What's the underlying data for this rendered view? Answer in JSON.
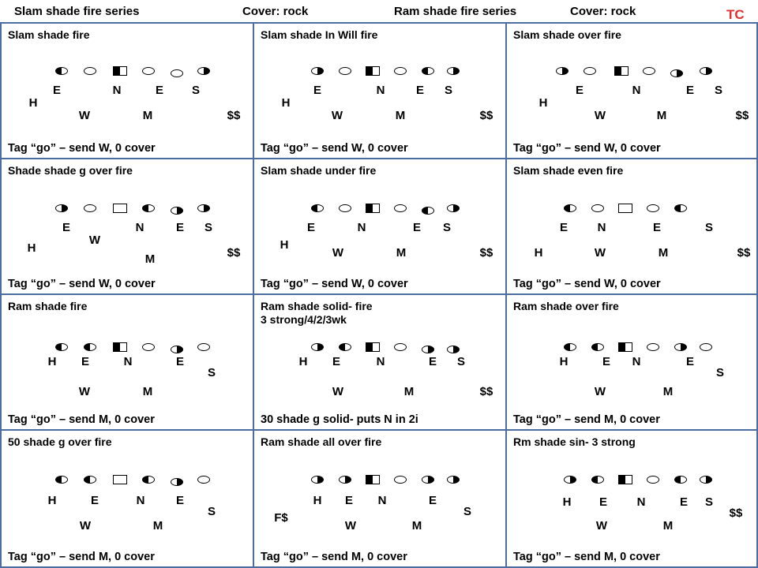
{
  "header": {
    "left_series": "Slam shade fire series",
    "left_cover": "Cover: rock",
    "right_series": "Ram shade fire series",
    "right_cover": "Cover: rock",
    "tag": "TC"
  },
  "cells": [
    {
      "title": "Slam shade fire",
      "footer": "Tag “go” – send W, 0 cover",
      "symbols": [
        "half-left",
        "oval",
        "square-half",
        "oval",
        "oval",
        "half-right"
      ],
      "labels": [
        "E",
        "N",
        "E",
        "S",
        "H",
        "W",
        "M",
        "$$"
      ]
    },
    {
      "title": "Slam shade In Will fire",
      "footer": "Tag “go” – send W, 0 cover",
      "symbols": [
        "half-right",
        "oval",
        "square-half",
        "oval",
        "half-left",
        "half-right"
      ],
      "labels": [
        "E",
        "N",
        "E",
        "S",
        "H",
        "W",
        "M",
        "$$"
      ]
    },
    {
      "title": "Slam shade over fire",
      "footer": "Tag “go” – send W, 0 cover",
      "symbols": [
        "half-right",
        "oval",
        "square-half",
        "oval",
        "half-right",
        "half-right"
      ],
      "labels": [
        "E",
        "N",
        "E",
        "S",
        "H",
        "W",
        "M",
        "$$"
      ]
    },
    {
      "title": "Shade shade  g over fire",
      "footer": "Tag “go” – send W, 0 cover",
      "symbols": [
        "half-right",
        "oval",
        "square",
        "half-left",
        "half-right",
        "half-right"
      ],
      "labels": [
        "E",
        "N",
        "E",
        "S",
        "H",
        "W",
        "M",
        "$$"
      ]
    },
    {
      "title": "Slam shade  under fire",
      "footer": "Tag “go” – send W, 0 cover",
      "symbols": [
        "half-left",
        "oval",
        "square-half",
        "oval",
        "half-left",
        "half-right"
      ],
      "labels": [
        "E",
        "N",
        "E",
        "S",
        "H",
        "W",
        "M",
        "$$"
      ]
    },
    {
      "title": "Slam shade  even fire",
      "footer": "Tag “go” – send W, 0 cover",
      "symbols": [
        "half-left",
        "oval",
        "square",
        "oval",
        "half-left"
      ],
      "labels": [
        "E",
        "N",
        "E",
        "S",
        "H",
        "W",
        "M",
        "$$"
      ]
    },
    {
      "title": "Ram shade fire",
      "footer": "Tag “go” – send M, 0 cover",
      "symbols": [
        "half-left",
        "half-left",
        "square-half",
        "oval",
        "half-right",
        "oval"
      ],
      "labels": [
        "H",
        "E",
        "N",
        "E",
        "S",
        "W",
        "M"
      ]
    },
    {
      "title": "Ram shade solid- fire",
      "subtitle": "3 strong/4/2/3wk",
      "footer": "30 shade g solid- puts N in 2i",
      "symbols": [
        "half-right",
        "half-left",
        "square-half",
        "oval",
        "half-right",
        "half-right"
      ],
      "labels": [
        "H",
        "E",
        "N",
        "E",
        "S",
        "W",
        "M",
        "$$"
      ]
    },
    {
      "title": "Ram shade over fire",
      "footer": "Tag “go” – send M, 0 cover",
      "symbols": [
        "half-left",
        "half-left",
        "square-half",
        "oval",
        "half-right",
        "oval"
      ],
      "labels": [
        "H",
        "E",
        "N",
        "E",
        "S",
        "W",
        "M"
      ]
    },
    {
      "title": "50 shade g over fire",
      "footer": "Tag “go” – send M, 0 cover",
      "symbols": [
        "half-left",
        "half-left",
        "square",
        "half-left",
        "half-right",
        "oval"
      ],
      "labels": [
        "H",
        "E",
        "N",
        "E",
        "S",
        "W",
        "M"
      ]
    },
    {
      "title": "Ram shade all over fire",
      "footer": "Tag “go” – send M, 0 cover",
      "symbols": [
        "half-right",
        "half-right",
        "square-half",
        "oval",
        "half-right",
        "half-right"
      ],
      "labels": [
        "H",
        "E",
        "N",
        "E",
        "S",
        "F$",
        "W",
        "M"
      ]
    },
    {
      "title": "Rm shade sin- 3 strong",
      "footer": "Tag “go” – send M, 0 cover",
      "symbols": [
        "half-right",
        "half-left",
        "square-half",
        "oval",
        "half-left",
        "half-right"
      ],
      "labels": [
        "H",
        "E",
        "N",
        "E",
        "S",
        "$$",
        "W",
        "M"
      ]
    }
  ]
}
